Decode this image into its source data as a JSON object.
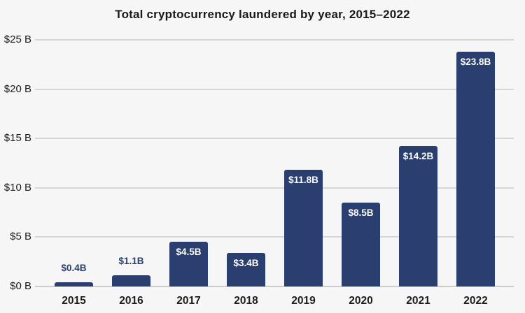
{
  "chart_data": {
    "type": "bar",
    "title": "Total cryptocurrency laundered by year, 2015–2022",
    "categories": [
      "2015",
      "2016",
      "2017",
      "2018",
      "2019",
      "2020",
      "2021",
      "2022"
    ],
    "values": [
      0.4,
      1.1,
      4.5,
      3.4,
      11.8,
      8.5,
      14.2,
      23.8
    ],
    "bar_labels": [
      "$0.4B",
      "$1.1B",
      "$4.5B",
      "$3.4B",
      "$11.8B",
      "$8.5B",
      "$14.2B",
      "$23.8B"
    ],
    "label_placement": [
      "outside",
      "outside",
      "inside",
      "inside",
      "inside",
      "inside",
      "inside",
      "inside"
    ],
    "xlabel": "",
    "ylabel": "",
    "ylim": [
      0,
      25
    ],
    "ytick_values": [
      0,
      5,
      10,
      15,
      20,
      25
    ],
    "ytick_labels": [
      "$0 B",
      "$5 B",
      "$10 B",
      "$15 B",
      "$20 B",
      "$25 B"
    ],
    "grid": true,
    "legend": false,
    "colors": {
      "bar": "#2a3e70",
      "background": "#f6f6f6",
      "gridline": "#d6d6d6",
      "baseline": "#cccccc",
      "title_text": "#1a1a1a",
      "axis_text": "#1c1c1c",
      "label_inside": "#fcfcfc",
      "label_outside": "#2a3e70"
    }
  }
}
